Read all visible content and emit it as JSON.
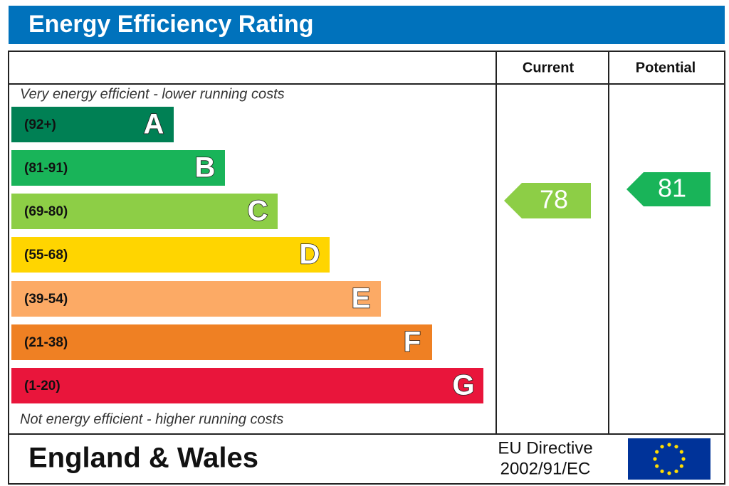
{
  "header": {
    "title": "Energy Efficiency Rating"
  },
  "columns": [
    "Current",
    "Potential"
  ],
  "notes": {
    "top": "Very energy efficient - lower running costs",
    "bottom": "Not energy efficient - higher running costs"
  },
  "bands": [
    {
      "range": "(92+)",
      "letter": "A",
      "color": "#008054"
    },
    {
      "range": "(81-91)",
      "letter": "B",
      "color": "#19b459"
    },
    {
      "range": "(69-80)",
      "letter": "C",
      "color": "#8dce46"
    },
    {
      "range": "(55-68)",
      "letter": "D",
      "color": "#ffd500"
    },
    {
      "range": "(39-54)",
      "letter": "E",
      "color": "#fcaa65"
    },
    {
      "range": "(21-38)",
      "letter": "F",
      "color": "#ef8023"
    },
    {
      "range": "(1-20)",
      "letter": "G",
      "color": "#e9153b"
    }
  ],
  "ratings": {
    "current": 78,
    "potential": 81
  },
  "footer": {
    "region": "England & Wales",
    "directive": [
      "EU Directive",
      "2002/91/EC"
    ]
  }
}
